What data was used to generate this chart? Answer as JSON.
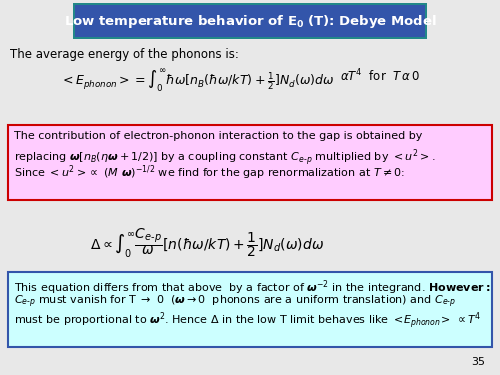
{
  "title": "Low temperature behavior of $\\mathbf{E_0}$ (T): Debye Model",
  "title_bg": "#3355aa",
  "title_border": "#228888",
  "title_fg": "white",
  "background": "#e8e8e8",
  "page_number": "35",
  "line1": "The average energy of the phonons is:",
  "box1_bg": "#ffccff",
  "box1_border": "#cc0000",
  "box2_bg": "#ccffff",
  "box2_border": "#3355aa"
}
